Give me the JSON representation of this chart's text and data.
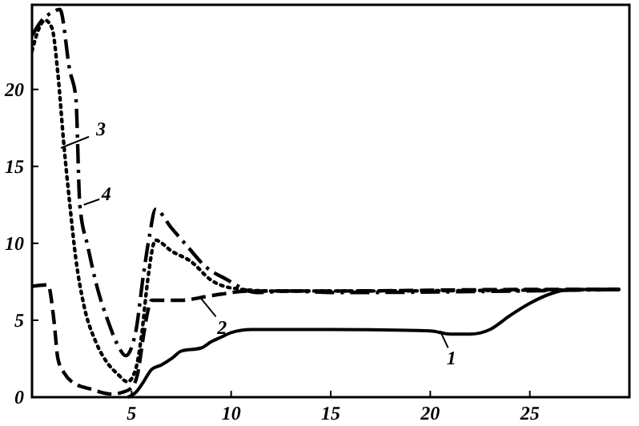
{
  "chart_data": {
    "type": "line",
    "xlim": [
      0,
      30
    ],
    "ylim": [
      0,
      25.5
    ],
    "xticks": [
      5,
      10,
      15,
      20,
      25
    ],
    "yticks": [
      0,
      5,
      10,
      15,
      20
    ],
    "marker": "none",
    "series": [
      {
        "color": "#000000",
        "line_style": "solid",
        "x": [
          4.8,
          5.2,
          5.6,
          6,
          6.5,
          7,
          7.5,
          8.5,
          9,
          9.5,
          10,
          11,
          15,
          20,
          21,
          22,
          23,
          24,
          25,
          26,
          27,
          29.5
        ],
        "values": [
          0,
          0.3,
          1,
          1.8,
          2.1,
          2.5,
          3,
          3.2,
          3.6,
          3.9,
          4.2,
          4.4,
          4.4,
          4.3,
          4.1,
          4.1,
          4.4,
          5.3,
          6.1,
          6.7,
          7,
          7
        ]
      },
      {
        "color": "#000000",
        "line_style": "dashed",
        "x": [
          0,
          0.8,
          1.1,
          1.3,
          1.6,
          2,
          3,
          4,
          4.5,
          5,
          5.3,
          5.6,
          5.8,
          6,
          7.5,
          9,
          11,
          15,
          25,
          29.5
        ],
        "values": [
          7.2,
          7.3,
          5,
          2.5,
          1.6,
          1,
          0.5,
          0.2,
          0.3,
          0.6,
          1.5,
          4,
          5.5,
          6.3,
          6.3,
          6.6,
          6.9,
          6.9,
          7,
          7
        ]
      },
      {
        "color": "#000000",
        "line_style": "dotted",
        "x": [
          0,
          0.3,
          0.65,
          1,
          1.3,
          1.6,
          1.9,
          2.2,
          2.6,
          3.2,
          3.8,
          4.3,
          4.8,
          5.2,
          5.5,
          5.8,
          6.2,
          7,
          8,
          9,
          10,
          12,
          15,
          29.5
        ],
        "values": [
          22.5,
          23.8,
          24.5,
          24,
          21,
          16.4,
          12.5,
          9,
          6,
          3.6,
          2.2,
          1.5,
          1,
          1.8,
          4,
          7.5,
          10.2,
          9.5,
          8.8,
          7.6,
          7.1,
          6.9,
          6.9,
          7
        ]
      },
      {
        "color": "#000000",
        "line_style": "dashdot",
        "x": [
          0,
          0.5,
          1,
          1.4,
          1.9,
          2.2,
          2.4,
          2.8,
          3.3,
          3.8,
          4.3,
          4.7,
          5.2,
          5.6,
          5.9,
          6.2,
          7,
          7.8,
          8.7,
          9.7,
          11.3,
          13,
          15,
          29.5
        ],
        "values": [
          23.5,
          24.5,
          25,
          25.2,
          21.2,
          19.5,
          12.5,
          9.8,
          7,
          5,
          3.4,
          2.7,
          4.2,
          8,
          10.5,
          12.2,
          11,
          9.8,
          8.5,
          7.7,
          6.8,
          6.9,
          6.8,
          7
        ]
      }
    ],
    "annotations": [
      {
        "text": "1",
        "x": 20.5,
        "y": 4.3
      },
      {
        "text": "2",
        "x": 8.5,
        "y": 6.4
      },
      {
        "text": "3",
        "x": 1.45,
        "y": 16.2
      },
      {
        "text": "4",
        "x": 2.6,
        "y": 12.5
      }
    ]
  }
}
